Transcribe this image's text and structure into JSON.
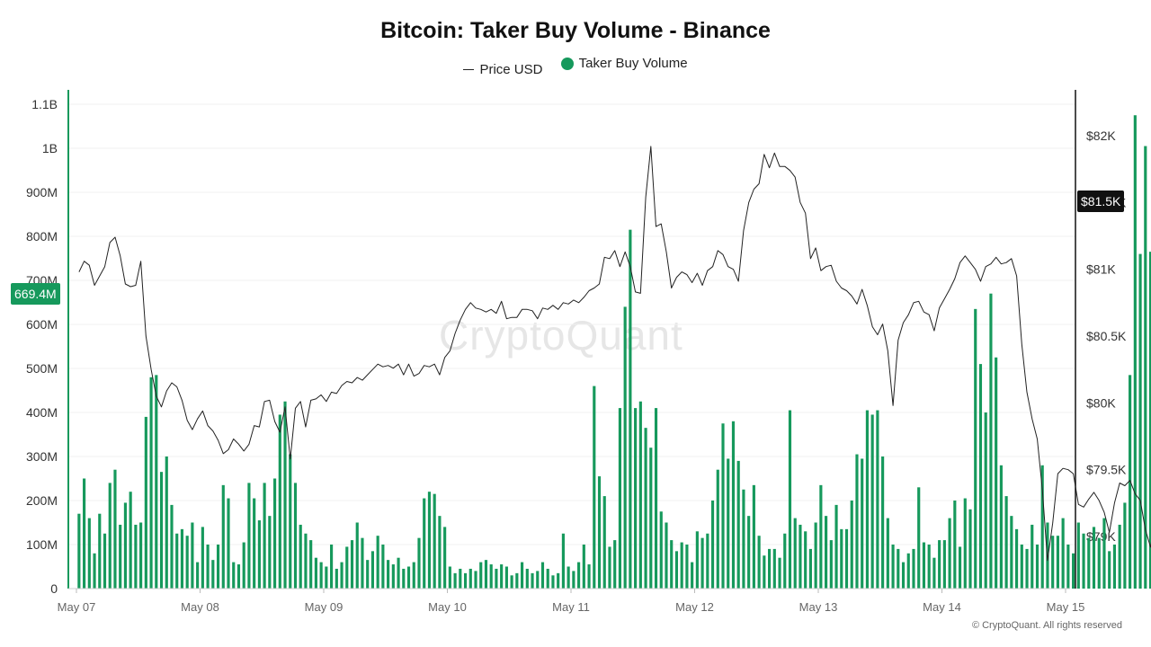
{
  "chart_data": {
    "type": "bar",
    "title": "Bitcoin: Taker Buy Volume - Binance",
    "legend": [
      {
        "label": "Price USD",
        "marker": "line",
        "color": "#222222"
      },
      {
        "label": "Taker Buy Volume",
        "marker": "dot",
        "color": "#16995c"
      }
    ],
    "legend_placement": "top-center",
    "x_ticks": [
      "May 07",
      "May 08",
      "May 09",
      "May 10",
      "May 11",
      "May 12",
      "May 13",
      "May 14",
      "May 15"
    ],
    "y_left_ticks": [
      "0",
      "100M",
      "200M",
      "300M",
      "400M",
      "500M",
      "600M",
      "700M",
      "800M",
      "900M",
      "1B",
      "1.1B"
    ],
    "y_left_range": [
      0,
      1100000000
    ],
    "y_right_ticks": [
      "$79K",
      "$79.5K",
      "$80K",
      "$80.5K",
      "$81K",
      "$81.5K",
      "$82K"
    ],
    "y_right_range": [
      78850,
      82280
    ],
    "x_range_hours": [
      0,
      192
    ],
    "bar_interval_hours": 1,
    "grid": true,
    "series": [
      {
        "name": "Taker Buy Volume",
        "axis": "left",
        "color": "#16995c",
        "values": [
          170000000,
          250000000,
          160000000,
          80000000,
          170000000,
          125000000,
          240000000,
          270000000,
          145000000,
          195000000,
          220000000,
          145000000,
          150000000,
          390000000,
          480000000,
          485000000,
          265000000,
          300000000,
          190000000,
          125000000,
          135000000,
          120000000,
          150000000,
          60000000,
          140000000,
          100000000,
          65000000,
          100000000,
          235000000,
          205000000,
          60000000,
          55000000,
          105000000,
          240000000,
          205000000,
          155000000,
          240000000,
          165000000,
          250000000,
          395000000,
          425000000,
          305000000,
          240000000,
          145000000,
          125000000,
          110000000,
          70000000,
          60000000,
          50000000,
          100000000,
          45000000,
          60000000,
          95000000,
          110000000,
          150000000,
          115000000,
          65000000,
          85000000,
          120000000,
          100000000,
          65000000,
          55000000,
          70000000,
          45000000,
          50000000,
          60000000,
          115000000,
          205000000,
          220000000,
          215000000,
          165000000,
          140000000,
          50000000,
          35000000,
          45000000,
          35000000,
          45000000,
          40000000,
          60000000,
          65000000,
          55000000,
          45000000,
          55000000,
          50000000,
          30000000,
          35000000,
          60000000,
          45000000,
          35000000,
          40000000,
          60000000,
          45000000,
          30000000,
          35000000,
          125000000,
          50000000,
          40000000,
          60000000,
          100000000,
          55000000,
          460000000,
          255000000,
          210000000,
          95000000,
          110000000,
          410000000,
          640000000,
          815000000,
          410000000,
          425000000,
          365000000,
          320000000,
          410000000,
          175000000,
          150000000,
          110000000,
          85000000,
          105000000,
          100000000,
          60000000,
          130000000,
          115000000,
          125000000,
          200000000,
          270000000,
          375000000,
          295000000,
          380000000,
          290000000,
          225000000,
          165000000,
          235000000,
          120000000,
          75000000,
          90000000,
          90000000,
          70000000,
          125000000,
          405000000,
          160000000,
          145000000,
          130000000,
          90000000,
          150000000,
          235000000,
          165000000,
          110000000,
          190000000,
          135000000,
          135000000,
          200000000,
          305000000,
          295000000,
          405000000,
          395000000,
          405000000,
          300000000,
          160000000,
          100000000,
          90000000,
          60000000,
          80000000,
          90000000,
          230000000,
          105000000,
          100000000,
          70000000,
          110000000,
          110000000,
          160000000,
          200000000,
          95000000,
          205000000,
          180000000,
          635000000,
          510000000,
          400000000,
          670000000,
          525000000,
          280000000,
          210000000,
          165000000,
          135000000,
          100000000,
          90000000,
          145000000,
          100000000,
          280000000,
          150000000,
          120000000,
          120000000,
          160000000,
          100000000,
          80000000,
          150000000,
          125000000,
          115000000,
          140000000,
          115000000,
          160000000,
          85000000,
          100000000,
          145000000,
          195000000,
          485000000,
          1075000000,
          760000000,
          1005000000,
          765000000,
          669400000
        ]
      },
      {
        "name": "Price USD",
        "axis": "right",
        "color": "#222222",
        "values": [
          80980,
          81060,
          81030,
          80880,
          80950,
          81020,
          81200,
          81240,
          81100,
          80890,
          80870,
          80880,
          81060,
          80500,
          80250,
          80050,
          79970,
          80090,
          80150,
          80120,
          80020,
          79870,
          79800,
          79880,
          79940,
          79830,
          79790,
          79720,
          79620,
          79650,
          79730,
          79690,
          79640,
          79690,
          79830,
          79820,
          80010,
          80020,
          79860,
          79780,
          79970,
          79580,
          79960,
          80010,
          79820,
          80020,
          80030,
          80060,
          80010,
          80080,
          80070,
          80130,
          80160,
          80150,
          80190,
          80170,
          80210,
          80250,
          80290,
          80270,
          80280,
          80260,
          80290,
          80210,
          80290,
          80200,
          80220,
          80280,
          80270,
          80290,
          80210,
          80340,
          80390,
          80520,
          80620,
          80700,
          80750,
          80710,
          80700,
          80680,
          80700,
          80670,
          80760,
          80630,
          80640,
          80640,
          80700,
          80700,
          80690,
          80630,
          80710,
          80700,
          80730,
          80700,
          80750,
          80740,
          80770,
          80750,
          80790,
          80840,
          80860,
          80890,
          81090,
          81080,
          81140,
          81020,
          81130,
          81020,
          80830,
          80820,
          81540,
          81920,
          81320,
          81340,
          81130,
          80860,
          80940,
          80980,
          80960,
          80900,
          80970,
          80880,
          80990,
          81020,
          81140,
          81110,
          81020,
          81000,
          80910,
          81290,
          81500,
          81600,
          81640,
          81860,
          81760,
          81870,
          81770,
          81770,
          81740,
          81690,
          81500,
          81420,
          81080,
          81160,
          80990,
          81020,
          81030,
          80910,
          80860,
          80840,
          80800,
          80740,
          80850,
          80730,
          80570,
          80510,
          80590,
          80390,
          79980,
          80470,
          80600,
          80660,
          80750,
          80760,
          80680,
          80660,
          80540,
          80710,
          80780,
          80850,
          80930,
          81050,
          81100,
          81050,
          81000,
          80910,
          81020,
          81040,
          81090,
          81040,
          81050,
          81080,
          80950,
          80440,
          80080,
          79880,
          79730,
          79350,
          78820,
          79100,
          79470,
          79510,
          79500,
          79470,
          79240,
          79220,
          79280,
          79330,
          79270,
          79180,
          79030,
          79250,
          79400,
          79380,
          79420,
          79320,
          79270,
          79050,
          78920,
          79150,
          79200,
          79190,
          79010,
          79130,
          79180,
          79330,
          79300,
          79180,
          79140,
          79170,
          79480,
          79690,
          79830,
          79940,
          80060,
          80490,
          80770,
          81310,
          81680,
          81520
        ],
        "start_hour": 0
      }
    ],
    "cursor_labels": {
      "left": "669.4M",
      "right": "$81.5K"
    }
  },
  "watermark": "CryptoQuant",
  "footer": "© CryptoQuant. All rights reserved"
}
